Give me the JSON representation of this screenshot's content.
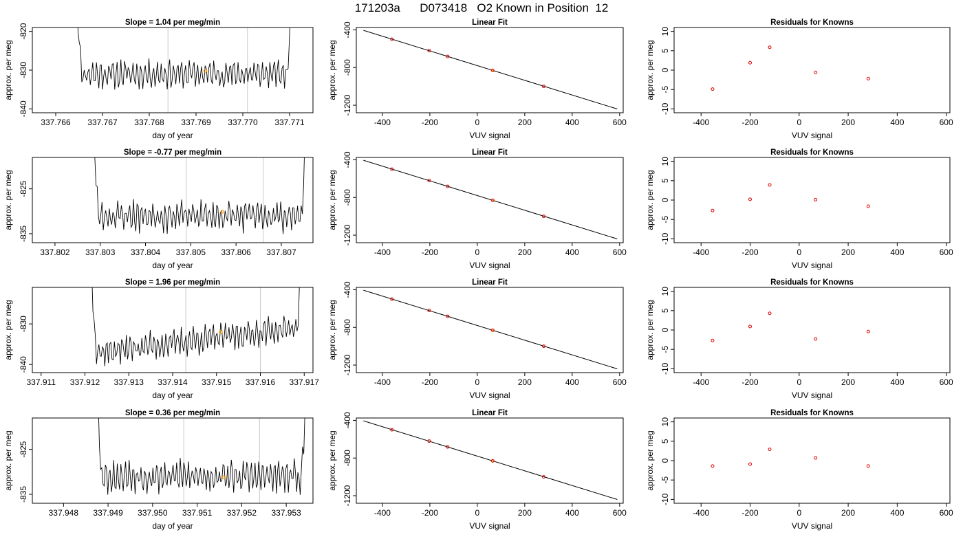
{
  "title": "171203a      D073418   O2 Known in Position  12",
  "chart_data": [
    {
      "type": "line",
      "title": "Slope =  1.04  per meg/min",
      "xlabel": "day of year",
      "ylabel": "approx. per meg",
      "xlim": [
        337.7655,
        337.7715
      ],
      "ylim": [
        -841,
        -819
      ],
      "x_ticks": [
        337.766,
        337.767,
        337.768,
        337.769,
        337.77,
        337.771
      ],
      "x_tick_labels": [
        "337.766",
        "337.767",
        "337.768",
        "337.769",
        "337.770",
        "337.771"
      ],
      "y_ticks": [
        -840,
        -830,
        -820
      ],
      "y_tick_labels": [
        "-840",
        "-830",
        "-820"
      ],
      "vlines": [
        337.7684,
        337.7701
      ],
      "trace_start": 337.7664,
      "trace_end": 337.7711,
      "trace_level": -831,
      "trace_seed": 11,
      "mean_marker": {
        "x": 337.7692,
        "y": -830.2
      }
    },
    {
      "type": "scatter",
      "title": "Linear Fit",
      "xlabel": "VUV signal",
      "ylabel": "approx. per meg",
      "xlim": [
        -510,
        615
      ],
      "ylim": [
        -1280,
        -375
      ],
      "x_ticks": [
        -400,
        -200,
        0,
        200,
        400,
        600
      ],
      "x_tick_labels": [
        "-400",
        "-200",
        "0",
        "200",
        "400",
        "600"
      ],
      "y_ticks": [
        -1200,
        -800,
        -400
      ],
      "y_tick_labels": [
        "-1200",
        "-800",
        "-400"
      ],
      "fit_line": [
        {
          "x": -480,
          "y": -405
        },
        {
          "x": 590,
          "y": -1240
        }
      ],
      "points": [
        {
          "x": -360,
          "y": -500
        },
        {
          "x": -203,
          "y": -620
        },
        {
          "x": -125,
          "y": -682
        },
        {
          "x": 65,
          "y": -830
        },
        {
          "x": 280,
          "y": -1000
        }
      ],
      "highlight_index": 3
    },
    {
      "type": "scatter",
      "title": "Residuals for Knowns",
      "xlabel": "VUV signal",
      "ylabel": "approx. per meg",
      "xlim": [
        -510,
        615
      ],
      "ylim": [
        -11,
        11
      ],
      "x_ticks": [
        -400,
        -200,
        0,
        200,
        400,
        600
      ],
      "x_tick_labels": [
        "-400",
        "-200",
        "0",
        "200",
        "400",
        "600"
      ],
      "y_ticks": [
        -10,
        -5,
        0,
        5,
        10
      ],
      "y_tick_labels": [
        "-10",
        "-5",
        "0",
        "5",
        "10"
      ],
      "points": [
        {
          "x": -353,
          "y": -4.9
        },
        {
          "x": -200,
          "y": 1.9
        },
        {
          "x": -120,
          "y": 5.9
        },
        {
          "x": 67,
          "y": -0.6
        },
        {
          "x": 282,
          "y": -2.2
        }
      ]
    },
    {
      "type": "line",
      "title": "Slope =  -0.77  per meg/min",
      "xlabel": "day of year",
      "ylabel": "approx. per meg",
      "xlim": [
        337.8015,
        337.8077
      ],
      "ylim": [
        -837,
        -818
      ],
      "x_ticks": [
        337.802,
        337.803,
        337.804,
        337.805,
        337.806,
        337.807
      ],
      "x_tick_labels": [
        "337.802",
        "337.803",
        "337.804",
        "337.805",
        "337.806",
        "337.807"
      ],
      "y_ticks": [
        -835,
        -825
      ],
      "y_tick_labels": [
        "-835",
        "-825"
      ],
      "vlines": [
        337.8049,
        337.8066
      ],
      "trace_start": 337.8028,
      "trace_end": 337.8076,
      "trace_level": -831,
      "trace_seed": 23,
      "mean_marker": {
        "x": 337.8057,
        "y": -830.1
      }
    },
    {
      "type": "scatter",
      "title": "Linear Fit",
      "xlabel": "VUV signal",
      "ylabel": "approx. per meg",
      "xlim": [
        -510,
        615
      ],
      "ylim": [
        -1280,
        -375
      ],
      "x_ticks": [
        -400,
        -200,
        0,
        200,
        400,
        600
      ],
      "x_tick_labels": [
        "-400",
        "-200",
        "0",
        "200",
        "400",
        "600"
      ],
      "y_ticks": [
        -1200,
        -800,
        -400
      ],
      "y_tick_labels": [
        "-1200",
        "-800",
        "-400"
      ],
      "fit_line": [
        {
          "x": -480,
          "y": -405
        },
        {
          "x": 590,
          "y": -1240
        }
      ],
      "points": [
        {
          "x": -360,
          "y": -500
        },
        {
          "x": -203,
          "y": -620
        },
        {
          "x": -125,
          "y": -682
        },
        {
          "x": 65,
          "y": -830
        },
        {
          "x": 280,
          "y": -1000
        }
      ],
      "highlight_index": 3
    },
    {
      "type": "scatter",
      "title": "Residuals for Knowns",
      "xlabel": "VUV signal",
      "ylabel": "approx. per meg",
      "xlim": [
        -510,
        615
      ],
      "ylim": [
        -11,
        11
      ],
      "x_ticks": [
        -400,
        -200,
        0,
        200,
        400,
        600
      ],
      "x_tick_labels": [
        "-400",
        "-200",
        "0",
        "200",
        "400",
        "600"
      ],
      "y_ticks": [
        -10,
        -5,
        0,
        5,
        10
      ],
      "y_tick_labels": [
        "-10",
        "-5",
        "0",
        "5",
        "10"
      ],
      "points": [
        {
          "x": -353,
          "y": -2.7
        },
        {
          "x": -200,
          "y": 0.2
        },
        {
          "x": -120,
          "y": 3.9
        },
        {
          "x": 67,
          "y": 0.1
        },
        {
          "x": 282,
          "y": -1.6
        }
      ]
    },
    {
      "type": "line",
      "title": "Slope =  1.96  per meg/min",
      "xlabel": "day of year",
      "ylabel": "approx. per meg",
      "xlim": [
        337.9108,
        337.9172
      ],
      "ylim": [
        -842,
        -821
      ],
      "x_ticks": [
        337.911,
        337.912,
        337.913,
        337.914,
        337.915,
        337.916,
        337.917
      ],
      "x_tick_labels": [
        "337.911",
        "337.912",
        "337.913",
        "337.914",
        "337.915",
        "337.916",
        "337.917"
      ],
      "y_ticks": [
        -840,
        -830
      ],
      "y_tick_labels": [
        "-840",
        "-830"
      ],
      "vlines": [
        337.9143,
        337.916
      ],
      "trace_start": 337.9121,
      "trace_end": 337.917,
      "trace_level": -834,
      "trace_slope": 6.5,
      "trace_seed": 37,
      "mean_marker": {
        "x": 337.9151,
        "y": -832.0
      }
    },
    {
      "type": "scatter",
      "title": "Linear Fit",
      "xlabel": "VUV signal",
      "ylabel": "approx. per meg",
      "xlim": [
        -510,
        615
      ],
      "ylim": [
        -1280,
        -375
      ],
      "x_ticks": [
        -400,
        -200,
        0,
        200,
        400,
        600
      ],
      "x_tick_labels": [
        "-400",
        "-200",
        "0",
        "200",
        "400",
        "600"
      ],
      "y_ticks": [
        -1200,
        -800,
        -400
      ],
      "y_tick_labels": [
        "-1200",
        "-800",
        "-400"
      ],
      "fit_line": [
        {
          "x": -480,
          "y": -405
        },
        {
          "x": 590,
          "y": -1240
        }
      ],
      "points": [
        {
          "x": -360,
          "y": -500
        },
        {
          "x": -203,
          "y": -620
        },
        {
          "x": -125,
          "y": -682
        },
        {
          "x": 65,
          "y": -830
        },
        {
          "x": 280,
          "y": -1000
        }
      ],
      "highlight_index": 3
    },
    {
      "type": "scatter",
      "title": "Residuals for Knowns",
      "xlabel": "VUV signal",
      "ylabel": "approx. per meg",
      "xlim": [
        -510,
        615
      ],
      "ylim": [
        -11,
        11
      ],
      "x_ticks": [
        -400,
        -200,
        0,
        200,
        400,
        600
      ],
      "x_tick_labels": [
        "-400",
        "-200",
        "0",
        "200",
        "400",
        "600"
      ],
      "y_ticks": [
        -10,
        -5,
        0,
        5,
        10
      ],
      "y_tick_labels": [
        "-10",
        "-5",
        "0",
        "5",
        "10"
      ],
      "points": [
        {
          "x": -353,
          "y": -2.7
        },
        {
          "x": -200,
          "y": 0.9
        },
        {
          "x": -120,
          "y": 4.3
        },
        {
          "x": 67,
          "y": -2.3
        },
        {
          "x": 282,
          "y": -0.4
        }
      ]
    },
    {
      "type": "line",
      "title": "Slope =  0.36  per meg/min",
      "xlabel": "day of year",
      "ylabel": "approx. per meg",
      "xlim": [
        337.9473,
        337.9536
      ],
      "ylim": [
        -837,
        -818
      ],
      "x_ticks": [
        337.948,
        337.949,
        337.95,
        337.951,
        337.952,
        337.953
      ],
      "x_tick_labels": [
        "337.948",
        "337.949",
        "337.950",
        "337.951",
        "337.952",
        "337.953"
      ],
      "y_ticks": [
        -835,
        -825
      ],
      "y_tick_labels": [
        "-835",
        "-825"
      ],
      "vlines": [
        337.9507,
        337.9524
      ],
      "trace_start": 337.9487,
      "trace_end": 337.9535,
      "trace_level": -831,
      "trace_seed": 53,
      "mean_marker": {
        "x": 337.9516,
        "y": -831.2
      }
    },
    {
      "type": "scatter",
      "title": "Linear Fit",
      "xlabel": "VUV signal",
      "ylabel": "approx. per meg",
      "xlim": [
        -510,
        615
      ],
      "ylim": [
        -1280,
        -375
      ],
      "x_ticks": [
        -400,
        -200,
        0,
        200,
        400,
        600
      ],
      "x_tick_labels": [
        "-400",
        "-200",
        "0",
        "200",
        "400",
        "600"
      ],
      "y_ticks": [
        -1200,
        -800,
        -400
      ],
      "y_tick_labels": [
        "-1200",
        "-800",
        "-400"
      ],
      "fit_line": [
        {
          "x": -480,
          "y": -405
        },
        {
          "x": 590,
          "y": -1240
        }
      ],
      "points": [
        {
          "x": -360,
          "y": -500
        },
        {
          "x": -203,
          "y": -620
        },
        {
          "x": -125,
          "y": -682
        },
        {
          "x": 65,
          "y": -830
        },
        {
          "x": 280,
          "y": -1000
        }
      ],
      "highlight_index": 3
    },
    {
      "type": "scatter",
      "title": "Residuals for Knowns",
      "xlabel": "VUV signal",
      "ylabel": "approx. per meg",
      "xlim": [
        -510,
        615
      ],
      "ylim": [
        -11,
        11
      ],
      "x_ticks": [
        -400,
        -200,
        0,
        200,
        400,
        600
      ],
      "x_tick_labels": [
        "-400",
        "-200",
        "0",
        "200",
        "400",
        "600"
      ],
      "y_ticks": [
        -10,
        -5,
        0,
        5,
        10
      ],
      "y_tick_labels": [
        "-10",
        "-5",
        "0",
        "5",
        "10"
      ],
      "points": [
        {
          "x": -353,
          "y": -1.4
        },
        {
          "x": -200,
          "y": -0.9
        },
        {
          "x": -120,
          "y": 2.9
        },
        {
          "x": 67,
          "y": 0.7
        },
        {
          "x": 282,
          "y": -1.4
        }
      ]
    }
  ]
}
